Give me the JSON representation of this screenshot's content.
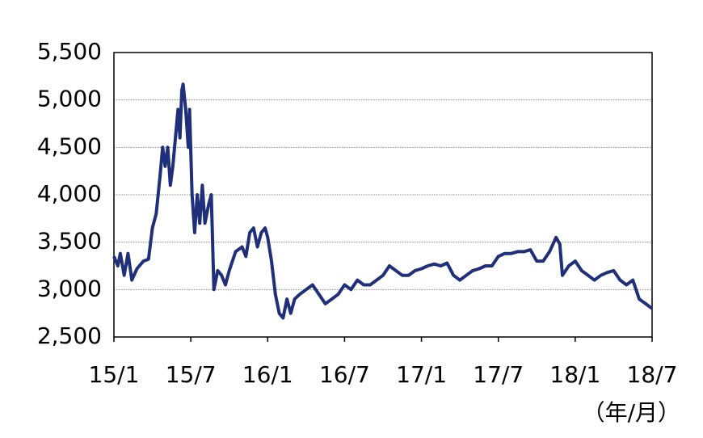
{
  "chart_data": {
    "type": "line",
    "xlabel": "（年/月）",
    "x": [
      0,
      0.3,
      0.5,
      0.8,
      1.1,
      1.4,
      1.8,
      2.3,
      2.7,
      3.0,
      3.3,
      3.6,
      3.8,
      4.0,
      4.2,
      4.4,
      4.6,
      4.8,
      5.0,
      5.15,
      5.3,
      5.4,
      5.6,
      5.8,
      5.9,
      6.1,
      6.3,
      6.5,
      6.7,
      6.9,
      7.1,
      7.4,
      7.6,
      7.8,
      8.1,
      8.4,
      8.7,
      9.0,
      9.5,
      10.0,
      10.3,
      10.6,
      10.9,
      11.2,
      11.5,
      11.8,
      12.0,
      12.3,
      12.6,
      12.9,
      13.2,
      13.5,
      13.8,
      14.1,
      14.5,
      15.0,
      15.5,
      16.0,
      16.5,
      17.0,
      17.5,
      18.0,
      18.5,
      19.0,
      19.5,
      20.0,
      20.5,
      21.0,
      21.5,
      22.0,
      22.5,
      23.0,
      23.5,
      24.0,
      24.5,
      25.0,
      25.5,
      26.0,
      26.5,
      27.0,
      27.5,
      28.0,
      28.5,
      29.0,
      29.5,
      30.0,
      30.5,
      31.0,
      31.5,
      32.0,
      32.5,
      33.0,
      33.5,
      34.0,
      34.5,
      34.8,
      35.0,
      35.5,
      36.0,
      36.5,
      37.0,
      37.5,
      38.0,
      38.5,
      39.0,
      39.5,
      40.0,
      40.5,
      41.0,
      41.5,
      42.0
    ],
    "values": [
      3350,
      3250,
      3380,
      3150,
      3380,
      3100,
      3220,
      3300,
      3320,
      3650,
      3800,
      4200,
      4500,
      4300,
      4500,
      4100,
      4300,
      4600,
      4900,
      4600,
      5100,
      5166,
      4900,
      4500,
      4900,
      4000,
      3600,
      4000,
      3700,
      4100,
      3700,
      3900,
      4000,
      3000,
      3200,
      3150,
      3050,
      3200,
      3400,
      3450,
      3350,
      3600,
      3650,
      3450,
      3600,
      3650,
      3550,
      3300,
      2950,
      2750,
      2700,
      2900,
      2750,
      2900,
      2950,
      3000,
      3050,
      2950,
      2850,
      2900,
      2950,
      3050,
      3000,
      3100,
      3050,
      3050,
      3100,
      3150,
      3250,
      3200,
      3150,
      3150,
      3200,
      3220,
      3250,
      3270,
      3250,
      3280,
      3150,
      3100,
      3150,
      3200,
      3220,
      3250,
      3250,
      3350,
      3380,
      3380,
      3400,
      3400,
      3420,
      3300,
      3300,
      3400,
      3550,
      3480,
      3150,
      3250,
      3300,
      3200,
      3150,
      3100,
      3150,
      3180,
      3200,
      3100,
      3050,
      3100,
      2900,
      2850,
      2800
    ],
    "color": "#1f2f7a",
    "xlim": [
      0,
      42
    ],
    "xticks": [
      {
        "value": 0,
        "label": "15/1"
      },
      {
        "value": 6,
        "label": "15/7"
      },
      {
        "value": 12,
        "label": "16/1"
      },
      {
        "value": 18,
        "label": "16/7"
      },
      {
        "value": 24,
        "label": "17/1"
      },
      {
        "value": 30,
        "label": "17/7"
      },
      {
        "value": 36,
        "label": "18/1"
      },
      {
        "value": 42,
        "label": "18/7"
      }
    ],
    "ylim": [
      2500,
      5500
    ],
    "yticks": [
      {
        "value": 2500,
        "label": "2,500"
      },
      {
        "value": 3000,
        "label": "3,000"
      },
      {
        "value": 3500,
        "label": "3,500"
      },
      {
        "value": 4000,
        "label": "4,000"
      },
      {
        "value": 4500,
        "label": "4,500"
      },
      {
        "value": 5000,
        "label": "5,000"
      },
      {
        "value": 5500,
        "label": "5,500"
      }
    ],
    "grid": true
  }
}
